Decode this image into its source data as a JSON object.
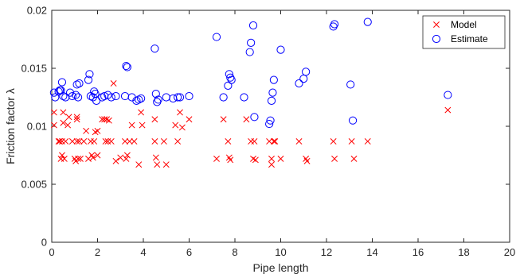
{
  "chart_data": {
    "type": "scatter",
    "title": "",
    "xlabel": "Pipe length",
    "ylabel": "Friction factor  λ",
    "xlim": [
      0,
      20
    ],
    "ylim": [
      0,
      0.02
    ],
    "xticks": [
      "0",
      "2",
      "4",
      "6",
      "8",
      "10",
      "12",
      "14",
      "16",
      "18",
      "20"
    ],
    "yticks": [
      "0",
      "0.005",
      "0.01",
      "0.015",
      "0.02"
    ],
    "grid": false,
    "legend_position": "top-right",
    "series": [
      {
        "name": "Model",
        "marker": "x",
        "color": "#ff0000",
        "points": [
          [
            0.1,
            0.0112
          ],
          [
            0.1,
            0.0101
          ],
          [
            0.3,
            0.0087
          ],
          [
            0.35,
            0.0087
          ],
          [
            0.4,
            0.0072
          ],
          [
            0.45,
            0.0075
          ],
          [
            0.45,
            0.0087
          ],
          [
            0.5,
            0.0112
          ],
          [
            0.5,
            0.0103
          ],
          [
            0.55,
            0.0072
          ],
          [
            0.6,
            0.0087
          ],
          [
            0.7,
            0.0101
          ],
          [
            0.75,
            0.0108
          ],
          [
            0.9,
            0.0087
          ],
          [
            1.0,
            0.0072
          ],
          [
            1.05,
            0.007
          ],
          [
            1.1,
            0.0087
          ],
          [
            1.1,
            0.0106
          ],
          [
            1.1,
            0.0108
          ],
          [
            1.15,
            0.0072
          ],
          [
            1.2,
            0.0087
          ],
          [
            1.25,
            0.0072
          ],
          [
            1.4,
            0.0087
          ],
          [
            1.5,
            0.0096
          ],
          [
            1.6,
            0.0072
          ],
          [
            1.7,
            0.0087
          ],
          [
            1.75,
            0.0075
          ],
          [
            1.8,
            0.0073
          ],
          [
            1.85,
            0.0087
          ],
          [
            1.9,
            0.0095
          ],
          [
            2.0,
            0.0096
          ],
          [
            2.0,
            0.0075
          ],
          [
            2.2,
            0.0106
          ],
          [
            2.3,
            0.0106
          ],
          [
            2.35,
            0.0087
          ],
          [
            2.4,
            0.0106
          ],
          [
            2.45,
            0.0087
          ],
          [
            2.5,
            0.0105
          ],
          [
            2.6,
            0.0087
          ],
          [
            2.7,
            0.0137
          ],
          [
            2.8,
            0.007
          ],
          [
            3.0,
            0.0073
          ],
          [
            3.2,
            0.0087
          ],
          [
            3.25,
            0.0072
          ],
          [
            3.3,
            0.0075
          ],
          [
            3.4,
            0.0087
          ],
          [
            3.5,
            0.0101
          ],
          [
            3.6,
            0.0087
          ],
          [
            3.8,
            0.0067
          ],
          [
            3.9,
            0.0112
          ],
          [
            3.95,
            0.0101
          ],
          [
            4.5,
            0.0106
          ],
          [
            4.5,
            0.0087
          ],
          [
            4.55,
            0.0073
          ],
          [
            4.6,
            0.0067
          ],
          [
            4.9,
            0.0087
          ],
          [
            5.0,
            0.0067
          ],
          [
            5.4,
            0.0101
          ],
          [
            5.5,
            0.0087
          ],
          [
            5.6,
            0.0112
          ],
          [
            5.7,
            0.0099
          ],
          [
            6.0,
            0.0106
          ],
          [
            7.2,
            0.0072
          ],
          [
            7.5,
            0.0106
          ],
          [
            7.7,
            0.0087
          ],
          [
            7.75,
            0.0073
          ],
          [
            7.8,
            0.0071
          ],
          [
            8.5,
            0.0106
          ],
          [
            8.7,
            0.0087
          ],
          [
            8.8,
            0.0072
          ],
          [
            8.85,
            0.0087
          ],
          [
            8.9,
            0.0071
          ],
          [
            9.5,
            0.0087
          ],
          [
            9.6,
            0.0067
          ],
          [
            9.6,
            0.0072
          ],
          [
            9.7,
            0.0087
          ],
          [
            9.75,
            0.0087
          ],
          [
            10.0,
            0.0072
          ],
          [
            10.8,
            0.0087
          ],
          [
            11.1,
            0.0072
          ],
          [
            11.15,
            0.007
          ],
          [
            12.3,
            0.0087
          ],
          [
            12.35,
            0.0072
          ],
          [
            13.1,
            0.0087
          ],
          [
            13.2,
            0.0072
          ],
          [
            13.8,
            0.0087
          ],
          [
            17.3,
            0.0114
          ]
        ]
      },
      {
        "name": "Estimate",
        "marker": "o",
        "color": "#0000ff",
        "points": [
          [
            0.1,
            0.0129
          ],
          [
            0.15,
            0.0125
          ],
          [
            0.3,
            0.013
          ],
          [
            0.35,
            0.0131
          ],
          [
            0.4,
            0.0131
          ],
          [
            0.45,
            0.0138
          ],
          [
            0.5,
            0.0126
          ],
          [
            0.6,
            0.0125
          ],
          [
            0.8,
            0.0129
          ],
          [
            0.9,
            0.0126
          ],
          [
            1.05,
            0.0127
          ],
          [
            1.1,
            0.0136
          ],
          [
            1.15,
            0.0125
          ],
          [
            1.2,
            0.0137
          ],
          [
            1.6,
            0.014
          ],
          [
            1.65,
            0.0145
          ],
          [
            1.7,
            0.0126
          ],
          [
            1.8,
            0.0125
          ],
          [
            1.85,
            0.013
          ],
          [
            1.9,
            0.0128
          ],
          [
            1.95,
            0.0122
          ],
          [
            2.2,
            0.0125
          ],
          [
            2.3,
            0.0126
          ],
          [
            2.45,
            0.0127
          ],
          [
            2.6,
            0.0125
          ],
          [
            2.8,
            0.0126
          ],
          [
            3.2,
            0.0126
          ],
          [
            3.25,
            0.0152
          ],
          [
            3.3,
            0.0151
          ],
          [
            3.5,
            0.0125
          ],
          [
            3.7,
            0.0122
          ],
          [
            3.8,
            0.0123
          ],
          [
            3.9,
            0.0124
          ],
          [
            4.5,
            0.0167
          ],
          [
            4.55,
            0.0128
          ],
          [
            4.6,
            0.0121
          ],
          [
            4.65,
            0.0123
          ],
          [
            5.0,
            0.0125
          ],
          [
            5.3,
            0.0124
          ],
          [
            5.5,
            0.0125
          ],
          [
            5.6,
            0.0125
          ],
          [
            6.0,
            0.0126
          ],
          [
            7.2,
            0.0177
          ],
          [
            7.5,
            0.0125
          ],
          [
            7.7,
            0.0135
          ],
          [
            7.75,
            0.0145
          ],
          [
            7.8,
            0.0142
          ],
          [
            7.85,
            0.014
          ],
          [
            8.4,
            0.0125
          ],
          [
            8.65,
            0.0164
          ],
          [
            8.7,
            0.0172
          ],
          [
            8.8,
            0.0187
          ],
          [
            8.85,
            0.0108
          ],
          [
            9.5,
            0.0102
          ],
          [
            9.55,
            0.0105
          ],
          [
            9.6,
            0.0122
          ],
          [
            9.65,
            0.0129
          ],
          [
            9.7,
            0.014
          ],
          [
            10.0,
            0.0166
          ],
          [
            10.8,
            0.0137
          ],
          [
            11.0,
            0.0141
          ],
          [
            11.1,
            0.0147
          ],
          [
            12.3,
            0.0186
          ],
          [
            12.35,
            0.0188
          ],
          [
            13.05,
            0.0136
          ],
          [
            13.15,
            0.0105
          ],
          [
            13.8,
            0.019
          ],
          [
            17.3,
            0.0127
          ]
        ]
      }
    ]
  }
}
